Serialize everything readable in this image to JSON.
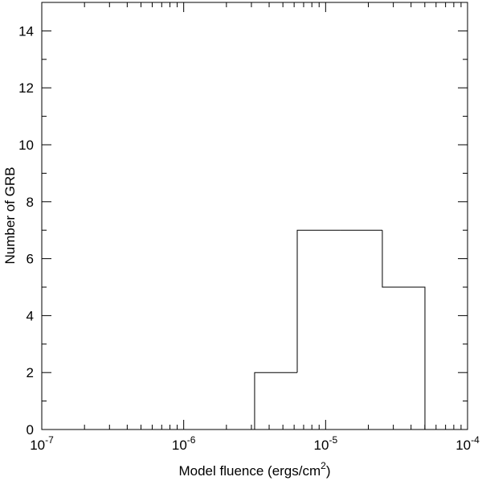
{
  "chart_data": {
    "type": "histogram",
    "xlabel": "Model fluence (ergs/cm",
    "xlabel_sup": "2",
    "xlabel_end": ")",
    "ylabel": "Number of GRB",
    "bins": [
      3.16e-06,
      6.31e-06,
      1.26e-05,
      2.51e-05,
      5.01e-05
    ],
    "values": [
      2,
      7,
      7,
      5
    ],
    "color": "#000000",
    "xscale": "log",
    "xlim": [
      1e-07,
      0.0001
    ],
    "xticks": [
      {
        "value": 1e-07,
        "label": "10",
        "exponent": "-7"
      },
      {
        "value": 1e-06,
        "label": "10",
        "exponent": "-6"
      },
      {
        "value": 1e-05,
        "label": "10",
        "exponent": "-5"
      },
      {
        "value": 0.0001,
        "label": "10",
        "exponent": "-4"
      }
    ],
    "ylim": [
      0,
      15
    ],
    "yticks": [
      0,
      2,
      4,
      6,
      8,
      10,
      12,
      14
    ]
  }
}
